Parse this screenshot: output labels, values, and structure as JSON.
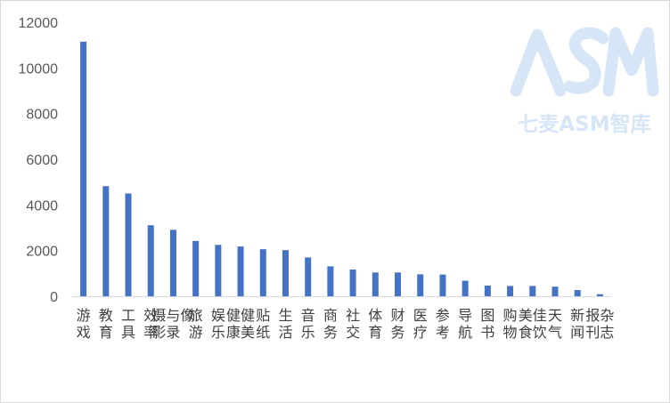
{
  "chart_data": {
    "type": "bar",
    "categories": [
      "游戏",
      "教育",
      "工具",
      "效率",
      "摄影与录像",
      "旅游",
      "娱乐",
      "健康健美",
      "贴纸",
      "生活",
      "音乐",
      "商务",
      "社交",
      "体育",
      "财务",
      "医疗",
      "参考",
      "导航",
      "图书",
      "购物",
      "美食佳饮",
      "天气",
      "新闻",
      "报刊杂志"
    ],
    "values": [
      11150,
      4820,
      4500,
      3110,
      2910,
      2420,
      2250,
      2180,
      2060,
      2020,
      1700,
      1310,
      1170,
      1040,
      1040,
      960,
      950,
      680,
      470,
      450,
      450,
      420,
      270,
      90
    ],
    "ylim": [
      0,
      12000
    ],
    "yticks": [
      0,
      2000,
      4000,
      6000,
      8000,
      10000,
      12000
    ],
    "bar_color": "#4472c4",
    "grid": false
  },
  "watermark": {
    "logo_text": "七麦ASM智库",
    "color": "#d6e6f7"
  }
}
